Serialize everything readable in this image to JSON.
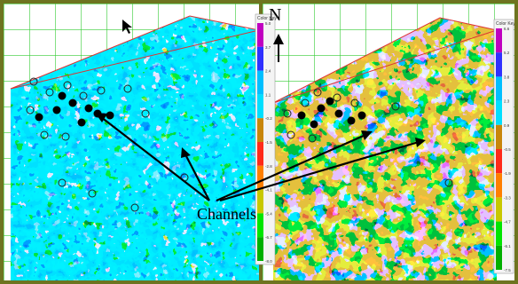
{
  "panels": [
    {
      "id": "left",
      "color_key": {
        "title": "Color Key",
        "ticks": [
          "5.0",
          "3.7",
          "2.4",
          "1.1",
          "-0.2",
          "-1.5",
          "-2.8",
          "-4.1",
          "-5.4",
          "-6.7",
          "-8.0"
        ]
      }
    },
    {
      "id": "right",
      "color_key": {
        "title": "Color Key",
        "ticks": [
          "6.6",
          "5.2",
          "3.8",
          "2.3",
          "0.9",
          "-0.5",
          "-1.9",
          "-3.3",
          "-4.7",
          "-6.1",
          "-7.5"
        ]
      }
    }
  ],
  "annotations": {
    "north_label": "N",
    "channels_label": "Channels"
  },
  "colors": {
    "border": "#6e7420",
    "grid": "#33cc33",
    "key_scale": [
      "#c000c0",
      "#3030ff",
      "#00bfff",
      "#00dfff",
      "#c8860a",
      "#ff2a1a",
      "#ff7f00",
      "#c8c800",
      "#00e600",
      "#00b000"
    ]
  }
}
